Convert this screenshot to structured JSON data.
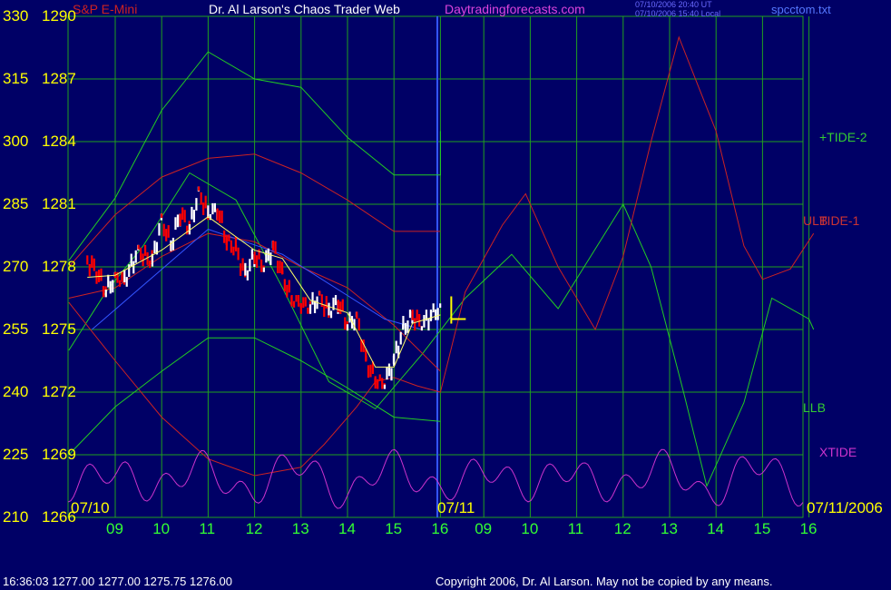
{
  "header": {
    "symbol": "S&P E-Mini",
    "title": "Dr. Al Larson's Chaos Trader Web",
    "site": "Daytradingforecasts.com",
    "stamp1": "07/10/2006 20:40 UT",
    "stamp2": "07/10/2006 15:40 Local",
    "file": "spcctom.txt"
  },
  "footer": {
    "quote": "16:36:03  1277.00 1277.00 1275.75 1276.00",
    "copyright": "Copyright 2006, Dr. Al Larson. May not be copied by any means."
  },
  "colors": {
    "background": "#000066",
    "grid": "#1fa01f",
    "price_up": "#ffffff",
    "price_down": "#ff0000",
    "channel_outer": "#22cc22",
    "channel_inner": "#cc2222",
    "xtide": "#cc33cc",
    "trend": "#3355ff",
    "average": "#ffff66",
    "yaxis_text": "#ffff00",
    "xaxis_text": "#33ff33"
  },
  "chart_data": {
    "type": "line",
    "left_axis_labels": [
      "330",
      "315",
      "300",
      "285",
      "270",
      "255",
      "240",
      "225",
      "210"
    ],
    "price_axis_labels": [
      "1290",
      "1287",
      "1284",
      "1281",
      "1278",
      "1275",
      "1272",
      "1269",
      "1266"
    ],
    "price_range": [
      1266,
      1290
    ],
    "x_date_labels": [
      "07/10",
      "07/11",
      "07/11/2006"
    ],
    "x_hour_labels": [
      "09",
      "10",
      "11",
      "12",
      "13",
      "14",
      "15",
      "16",
      "09",
      "10",
      "11",
      "12",
      "13",
      "14",
      "15",
      "16"
    ],
    "right_labels": [
      {
        "text": "+TIDE-2",
        "color": "#33cc33"
      },
      {
        "text": "ULB",
        "color": "#cc3333"
      },
      {
        "text": "TIDE-1",
        "color": "#cc3333"
      },
      {
        "text": "LLB",
        "color": "#33cc33"
      },
      {
        "text": "XTIDE",
        "color": "#cc33cc"
      }
    ],
    "price_close": [
      {
        "x": 8.4,
        "p": 1278.3
      },
      {
        "x": 8.6,
        "p": 1277.8
      },
      {
        "x": 8.8,
        "p": 1276.8
      },
      {
        "x": 9.0,
        "p": 1277.5
      },
      {
        "x": 9.2,
        "p": 1277.3
      },
      {
        "x": 9.5,
        "p": 1278.8
      },
      {
        "x": 9.8,
        "p": 1278.2
      },
      {
        "x": 10.0,
        "p": 1280.3
      },
      {
        "x": 10.2,
        "p": 1279.0
      },
      {
        "x": 10.4,
        "p": 1280.6
      },
      {
        "x": 10.6,
        "p": 1279.8
      },
      {
        "x": 10.8,
        "p": 1281.6
      },
      {
        "x": 11.0,
        "p": 1280.5
      },
      {
        "x": 11.2,
        "p": 1280.8
      },
      {
        "x": 11.4,
        "p": 1279.3
      },
      {
        "x": 11.6,
        "p": 1278.8
      },
      {
        "x": 11.8,
        "p": 1277.6
      },
      {
        "x": 12.0,
        "p": 1278.6
      },
      {
        "x": 12.2,
        "p": 1278.0
      },
      {
        "x": 12.4,
        "p": 1279.0
      },
      {
        "x": 12.6,
        "p": 1277.6
      },
      {
        "x": 12.8,
        "p": 1276.4
      },
      {
        "x": 13.0,
        "p": 1276.3
      },
      {
        "x": 13.2,
        "p": 1276.0
      },
      {
        "x": 13.4,
        "p": 1276.6
      },
      {
        "x": 13.6,
        "p": 1275.8
      },
      {
        "x": 13.8,
        "p": 1276.4
      },
      {
        "x": 14.0,
        "p": 1275.2
      },
      {
        "x": 14.2,
        "p": 1275.6
      },
      {
        "x": 14.4,
        "p": 1273.5
      },
      {
        "x": 14.6,
        "p": 1272.6
      },
      {
        "x": 14.8,
        "p": 1272.4
      },
      {
        "x": 15.0,
        "p": 1273.5
      },
      {
        "x": 15.2,
        "p": 1275.0
      },
      {
        "x": 15.4,
        "p": 1275.7
      },
      {
        "x": 15.6,
        "p": 1275.2
      },
      {
        "x": 15.8,
        "p": 1275.7
      },
      {
        "x": 16.0,
        "p": 1276.0
      }
    ],
    "forecast_lines": [
      {
        "name": "+TIDE-2",
        "color": "#22cc22",
        "points": [
          [
            8.0,
            1274.0
          ],
          [
            8.8,
            1276.8
          ],
          [
            9.6,
            1279.0
          ],
          [
            10.6,
            1282.5
          ],
          [
            11.6,
            1281.2
          ],
          [
            12.6,
            1277.0
          ],
          [
            13.6,
            1272.5
          ],
          [
            14.6,
            1271.2
          ],
          [
            15.6,
            1273.8
          ],
          [
            16.6,
            1276.5
          ],
          [
            17.6,
            1278.6
          ],
          [
            18.6,
            1276.0
          ],
          [
            19.3,
            1278.5
          ],
          [
            20.0,
            1281.0
          ],
          [
            20.6,
            1278.0
          ],
          [
            21.3,
            1272.0
          ],
          [
            21.8,
            1267.5
          ],
          [
            22.6,
            1271.5
          ],
          [
            23.2,
            1276.5
          ],
          [
            24.0,
            1275.5
          ],
          [
            24.1,
            1275.0
          ]
        ]
      },
      {
        "name": "TIDE-1",
        "color": "#cc2222",
        "points": [
          [
            8.0,
            1276.3
          ],
          [
            9.0,
            1273.5
          ],
          [
            10.0,
            1270.8
          ],
          [
            11.0,
            1268.8
          ],
          [
            12.0,
            1268.0
          ],
          [
            13.0,
            1268.4
          ],
          [
            13.5,
            1269.5
          ],
          [
            14.2,
            1271.3
          ],
          [
            14.6,
            1272.5
          ],
          [
            15.0,
            1272.7
          ],
          [
            15.5,
            1272.3
          ],
          [
            16.0,
            1272.0
          ],
          [
            16.6,
            1276.8
          ],
          [
            17.4,
            1280.0
          ],
          [
            17.9,
            1281.5
          ],
          [
            18.6,
            1278.0
          ],
          [
            19.4,
            1275.0
          ],
          [
            20.0,
            1278.5
          ],
          [
            20.6,
            1284.0
          ],
          [
            21.2,
            1289.0
          ],
          [
            22.0,
            1284.5
          ],
          [
            22.6,
            1279.0
          ],
          [
            23.0,
            1277.4
          ],
          [
            23.6,
            1277.9
          ],
          [
            24.1,
            1279.6
          ]
        ]
      },
      {
        "name": "channel",
        "color": "#22cc22",
        "points": [
          [
            8.0,
            1269.0
          ],
          [
            9.0,
            1271.3
          ],
          [
            10.0,
            1273.0
          ],
          [
            11.0,
            1274.6
          ],
          [
            12.0,
            1274.6
          ],
          [
            13.0,
            1273.5
          ],
          [
            14.0,
            1272.2
          ],
          [
            15.0,
            1270.8
          ],
          [
            16.0,
            1270.6
          ]
        ]
      },
      {
        "name": "channel",
        "color": "#cc2222",
        "points": [
          [
            8.0,
            1278.0
          ],
          [
            9.0,
            1280.5
          ],
          [
            10.0,
            1282.3
          ],
          [
            11.0,
            1283.2
          ],
          [
            12.0,
            1283.4
          ],
          [
            13.0,
            1282.5
          ],
          [
            14.0,
            1281.2
          ],
          [
            15.0,
            1279.7
          ],
          [
            16.0,
            1279.7
          ]
        ]
      },
      {
        "name": "channel",
        "color": "#cc2222",
        "points": [
          [
            8.0,
            1276.5
          ],
          [
            9.0,
            1277.0
          ],
          [
            10.0,
            1278.5
          ],
          [
            11.0,
            1279.6
          ],
          [
            12.0,
            1279.2
          ],
          [
            13.0,
            1278.0
          ],
          [
            14.0,
            1277.0
          ],
          [
            15.0,
            1275.2
          ],
          [
            16.0,
            1273.0
          ]
        ]
      },
      {
        "name": "channel",
        "color": "#22cc22",
        "points": [
          [
            8.0,
            1278.3
          ],
          [
            9.0,
            1281.3
          ],
          [
            10.0,
            1285.5
          ],
          [
            11.0,
            1288.3
          ],
          [
            12.0,
            1287.0
          ],
          [
            13.0,
            1286.6
          ],
          [
            14.0,
            1284.2
          ],
          [
            15.0,
            1282.4
          ],
          [
            16.0,
            1282.4
          ],
          [
            16.0,
            1284.5
          ]
        ]
      }
    ],
    "trend_line": [
      [
        8.5,
        1275.0
      ],
      [
        11.0,
        1279.8
      ],
      [
        12.6,
        1278.6
      ],
      [
        14.8,
        1275.5
      ],
      [
        15.6,
        1275.0
      ]
    ],
    "average_line": [
      [
        8.4,
        1277.5
      ],
      [
        9.0,
        1277.6
      ],
      [
        10.0,
        1278.8
      ],
      [
        11.0,
        1280.4
      ],
      [
        12.0,
        1278.8
      ],
      [
        12.6,
        1278.4
      ],
      [
        13.2,
        1276.4
      ],
      [
        14.0,
        1275.8
      ],
      [
        14.6,
        1273.2
      ],
      [
        15.0,
        1273.2
      ],
      [
        15.4,
        1275.3
      ],
      [
        16.0,
        1275.7
      ]
    ],
    "marker": {
      "x": 16.3,
      "p": 1275.5
    }
  }
}
